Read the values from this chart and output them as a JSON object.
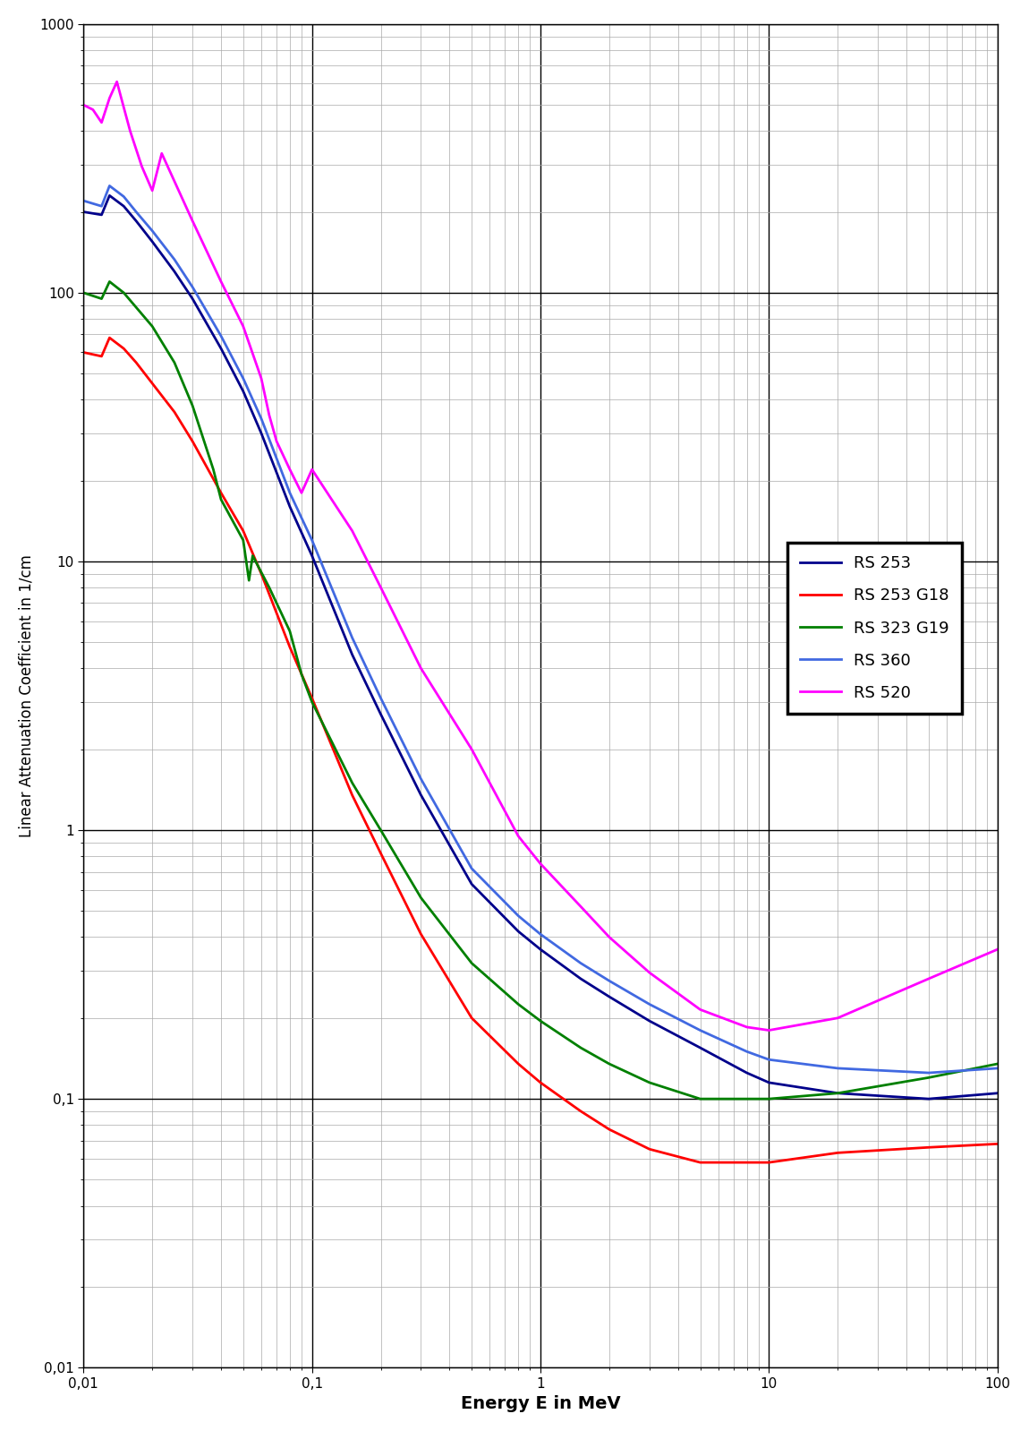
{
  "title": "",
  "xlabel": "Energy E in MeV",
  "ylabel": "Linear Attenuation Coefficient in 1/cm",
  "xlim": [
    0.01,
    100
  ],
  "ylim": [
    0.01,
    1000
  ],
  "legend_labels": [
    "RS 253",
    "RS 253 G18",
    "RS 323 G19",
    "RS 360",
    "RS 520"
  ],
  "colors": [
    "#00008B",
    "#FF0000",
    "#008000",
    "#4169E1",
    "#FF00FF"
  ],
  "linewidth": 2.0,
  "RS_253": {
    "x": [
      0.01,
      0.012,
      0.013,
      0.015,
      0.017,
      0.02,
      0.025,
      0.03,
      0.04,
      0.05,
      0.06,
      0.08,
      0.1,
      0.15,
      0.2,
      0.3,
      0.5,
      0.8,
      1.0,
      1.5,
      2.0,
      3.0,
      5.0,
      8.0,
      10.0,
      20.0,
      50.0,
      100.0
    ],
    "y": [
      200,
      195,
      230,
      210,
      185,
      155,
      120,
      95,
      62,
      43,
      30,
      16,
      10.5,
      4.5,
      2.7,
      1.35,
      0.63,
      0.42,
      0.36,
      0.28,
      0.24,
      0.195,
      0.155,
      0.125,
      0.115,
      0.105,
      0.1,
      0.105
    ]
  },
  "RS_253_G18": {
    "x": [
      0.01,
      0.012,
      0.013,
      0.015,
      0.017,
      0.02,
      0.025,
      0.03,
      0.04,
      0.05,
      0.06,
      0.08,
      0.1,
      0.15,
      0.2,
      0.3,
      0.5,
      0.8,
      1.0,
      1.5,
      2.0,
      3.0,
      5.0,
      8.0,
      10.0,
      20.0,
      50.0,
      100.0
    ],
    "y": [
      60,
      58,
      68,
      62,
      55,
      46,
      36,
      28,
      18,
      13,
      9.0,
      4.8,
      3.1,
      1.35,
      0.82,
      0.41,
      0.2,
      0.135,
      0.115,
      0.09,
      0.077,
      0.065,
      0.058,
      0.058,
      0.058,
      0.063,
      0.066,
      0.068
    ]
  },
  "RS_323_G19": {
    "x": [
      0.01,
      0.012,
      0.013,
      0.015,
      0.02,
      0.025,
      0.03,
      0.037,
      0.04,
      0.05,
      0.053,
      0.055,
      0.065,
      0.08,
      0.09,
      0.1,
      0.15,
      0.2,
      0.3,
      0.5,
      0.8,
      1.0,
      1.5,
      2.0,
      3.0,
      5.0,
      8.0,
      10.0,
      20.0,
      50.0,
      100.0
    ],
    "y": [
      100,
      95,
      110,
      100,
      75,
      55,
      38,
      22,
      17,
      12,
      8.5,
      10.5,
      8.0,
      5.5,
      3.8,
      3.0,
      1.5,
      1.0,
      0.56,
      0.32,
      0.225,
      0.195,
      0.155,
      0.135,
      0.115,
      0.1,
      0.1,
      0.1,
      0.105,
      0.12,
      0.135
    ]
  },
  "RS_360": {
    "x": [
      0.01,
      0.012,
      0.013,
      0.015,
      0.017,
      0.02,
      0.025,
      0.03,
      0.04,
      0.05,
      0.06,
      0.08,
      0.1,
      0.15,
      0.2,
      0.3,
      0.5,
      0.8,
      1.0,
      1.5,
      2.0,
      3.0,
      5.0,
      8.0,
      10.0,
      20.0,
      50.0,
      100.0
    ],
    "y": [
      220,
      210,
      250,
      228,
      200,
      170,
      133,
      105,
      69,
      48,
      34,
      18,
      12,
      5.2,
      3.1,
      1.55,
      0.72,
      0.48,
      0.41,
      0.32,
      0.275,
      0.225,
      0.18,
      0.15,
      0.14,
      0.13,
      0.125,
      0.13
    ]
  },
  "RS_520": {
    "x": [
      0.01,
      0.011,
      0.012,
      0.013,
      0.014,
      0.015,
      0.016,
      0.018,
      0.02,
      0.022,
      0.025,
      0.03,
      0.04,
      0.05,
      0.06,
      0.065,
      0.07,
      0.08,
      0.09,
      0.1,
      0.15,
      0.2,
      0.3,
      0.5,
      0.8,
      1.0,
      1.5,
      2.0,
      3.0,
      5.0,
      8.0,
      10.0,
      20.0,
      50.0,
      100.0
    ],
    "y": [
      500,
      480,
      430,
      530,
      610,
      490,
      400,
      295,
      240,
      330,
      260,
      185,
      110,
      75,
      48,
      35,
      28,
      22,
      18,
      22,
      13,
      8.0,
      4.0,
      2.0,
      0.95,
      0.75,
      0.52,
      0.4,
      0.295,
      0.215,
      0.185,
      0.18,
      0.2,
      0.28,
      0.36
    ]
  },
  "grid_major_color": "#000000",
  "grid_minor_color": "#AAAAAA",
  "bg_color": "#FFFFFF"
}
